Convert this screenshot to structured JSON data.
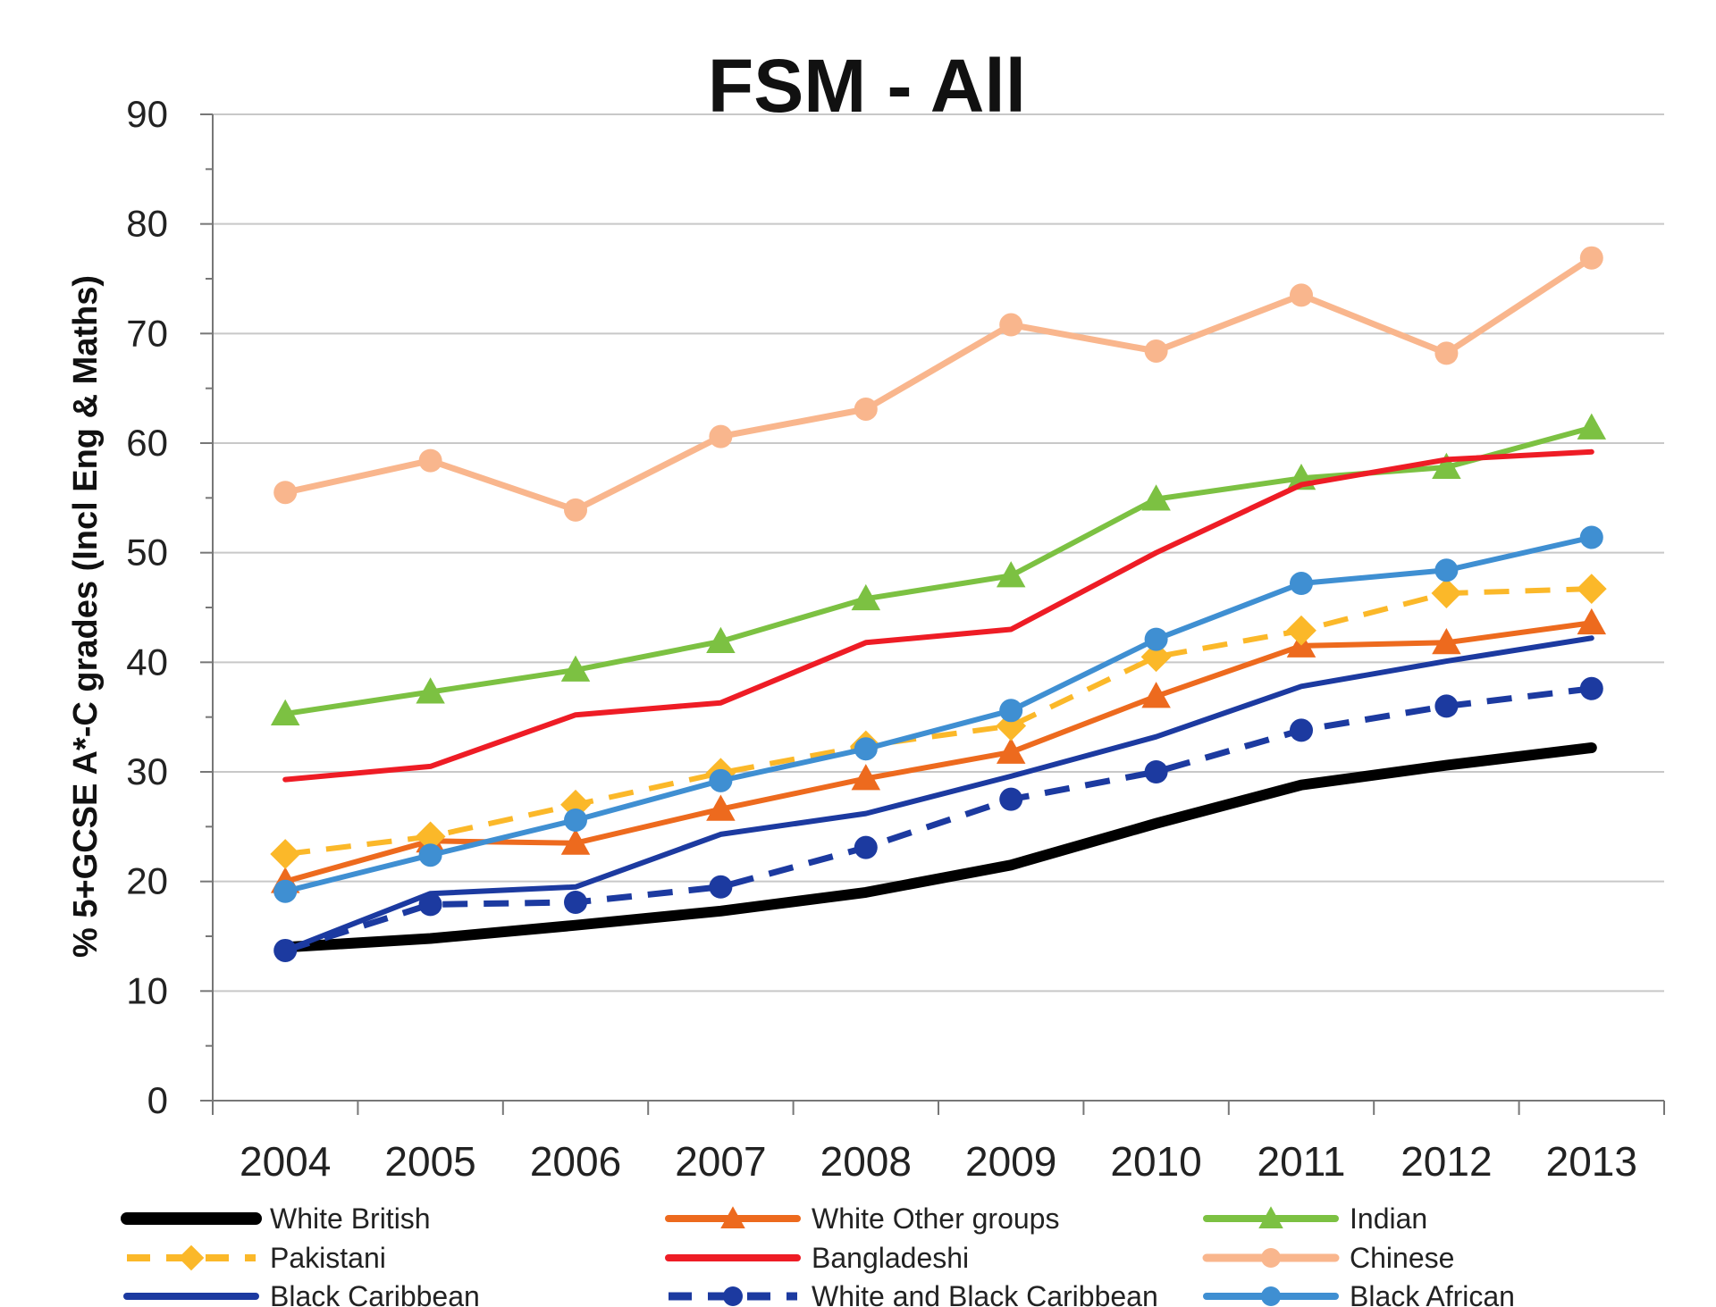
{
  "chart_data": {
    "type": "line",
    "title": "FSM - All",
    "xlabel": "",
    "ylabel": "% 5+GCSE A*-C grades (Incl Eng & Maths)",
    "x": [
      "2004",
      "2005",
      "2006",
      "2007",
      "2008",
      "2009",
      "2010",
      "2011",
      "2012",
      "2013"
    ],
    "ylim": [
      0,
      90
    ],
    "yticks": [
      "0",
      "10",
      "20",
      "30",
      "40",
      "50",
      "60",
      "70",
      "80",
      "90"
    ],
    "grid": true,
    "legend_position": "bottom",
    "series": [
      {
        "name": "White British",
        "color": "#000000",
        "dash": false,
        "marker": "none",
        "width": 12,
        "values": [
          14,
          14.8,
          16,
          17.3,
          19,
          21.5,
          25.3,
          28.8,
          30.6,
          32.2
        ]
      },
      {
        "name": "White Other groups",
        "color": "#ed6a1e",
        "dash": false,
        "marker": "triangle",
        "width": 6,
        "values": [
          20,
          23.7,
          23.5,
          26.6,
          29.4,
          31.8,
          36.9,
          41.5,
          41.8,
          43.6
        ]
      },
      {
        "name": "Indian",
        "color": "#7cc142",
        "dash": false,
        "marker": "triangle",
        "width": 6,
        "values": [
          35.3,
          37.3,
          39.3,
          41.9,
          45.8,
          47.9,
          54.9,
          56.8,
          57.8,
          61.4
        ]
      },
      {
        "name": "Pakistani",
        "color": "#fbb829",
        "dash": true,
        "marker": "diamond",
        "width": 6,
        "values": [
          22.5,
          24.1,
          27,
          29.9,
          32.4,
          34.2,
          40.5,
          42.9,
          46.3,
          46.7
        ]
      },
      {
        "name": "Bangladeshi",
        "color": "#ee1c25",
        "dash": false,
        "marker": "none",
        "width": 6,
        "values": [
          29.3,
          30.5,
          35.2,
          36.3,
          41.8,
          43,
          50,
          56.2,
          58.5,
          59.2
        ]
      },
      {
        "name": "Chinese",
        "color": "#f9b68d",
        "dash": false,
        "marker": "circle",
        "width": 7,
        "values": [
          55.5,
          58.4,
          53.9,
          60.6,
          63.1,
          70.8,
          68.4,
          73.5,
          68.2,
          76.9
        ]
      },
      {
        "name": "Black Caribbean",
        "color": "#1c3aa0",
        "dash": false,
        "marker": "none",
        "width": 6,
        "values": [
          13.7,
          18.9,
          19.5,
          24.3,
          26.2,
          29.6,
          33.2,
          37.8,
          40.1,
          42.2
        ]
      },
      {
        "name": "White and Black Caribbean",
        "color": "#1c3aa0",
        "dash": true,
        "marker": "circle",
        "width": 7,
        "values": [
          13.7,
          17.9,
          18.1,
          19.5,
          23.1,
          27.5,
          30,
          33.8,
          36,
          37.6
        ]
      },
      {
        "name": "Black African",
        "color": "#3f8fd2",
        "dash": false,
        "marker": "circle",
        "width": 6,
        "values": [
          19.1,
          22.4,
          25.6,
          29.2,
          32.1,
          35.6,
          42.1,
          47.2,
          48.4,
          51.4
        ]
      }
    ]
  }
}
